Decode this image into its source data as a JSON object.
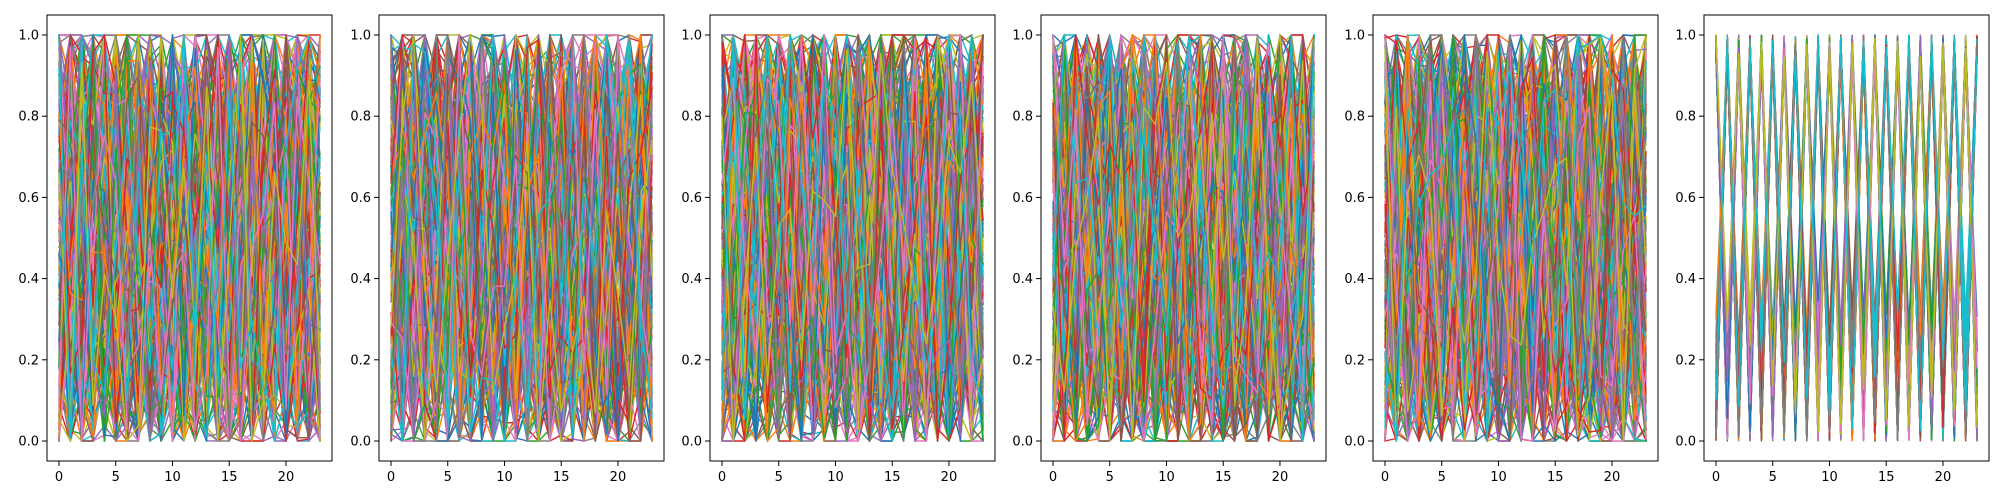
{
  "figure": {
    "panel_count": 6
  },
  "chart_data": [
    {
      "type": "line",
      "title": "",
      "xlabel": "",
      "ylabel": "",
      "xlim": [
        0,
        23
      ],
      "ylim": [
        0,
        1
      ],
      "xticks": [
        "0",
        "5",
        "10",
        "15",
        "20"
      ],
      "xtick_values": [
        0,
        5,
        10,
        15,
        20
      ],
      "yticks": [
        "0.0",
        "0.2",
        "0.4",
        "0.6",
        "0.8",
        "1.0"
      ],
      "ytick_values": [
        0.0,
        0.2,
        0.4,
        0.6,
        0.8,
        1.0
      ],
      "grid": false,
      "legend": "none",
      "n_points_per_series": 24,
      "series_count": 200,
      "color_cycle": [
        "#1f77b4",
        "#ff7f0e",
        "#2ca02c",
        "#d62728",
        "#9467bd",
        "#8c564b",
        "#e377c2",
        "#7f7f7f",
        "#bcbd22",
        "#17becf"
      ],
      "distribution": "uniform random values in [0, 1], dense overlapping lines"
    },
    {
      "type": "line",
      "title": "",
      "xlabel": "",
      "ylabel": "",
      "xlim": [
        0,
        23
      ],
      "ylim": [
        0,
        1
      ],
      "xticks": [
        "0",
        "5",
        "10",
        "15",
        "20"
      ],
      "xtick_values": [
        0,
        5,
        10,
        15,
        20
      ],
      "yticks": [
        "0.0",
        "0.2",
        "0.4",
        "0.6",
        "0.8",
        "1.0"
      ],
      "ytick_values": [
        0.0,
        0.2,
        0.4,
        0.6,
        0.8,
        1.0
      ],
      "grid": false,
      "legend": "none",
      "n_points_per_series": 24,
      "series_count": 200,
      "color_cycle": [
        "#1f77b4",
        "#ff7f0e",
        "#2ca02c",
        "#d62728",
        "#9467bd",
        "#8c564b",
        "#e377c2",
        "#7f7f7f",
        "#bcbd22",
        "#17becf"
      ],
      "distribution": "uniform random values in [0, 1], dense overlapping lines"
    },
    {
      "type": "line",
      "title": "",
      "xlabel": "",
      "ylabel": "",
      "xlim": [
        0,
        23
      ],
      "ylim": [
        0,
        1
      ],
      "xticks": [
        "0",
        "5",
        "10",
        "15",
        "20"
      ],
      "xtick_values": [
        0,
        5,
        10,
        15,
        20
      ],
      "yticks": [
        "0.0",
        "0.2",
        "0.4",
        "0.6",
        "0.8",
        "1.0"
      ],
      "ytick_values": [
        0.0,
        0.2,
        0.4,
        0.6,
        0.8,
        1.0
      ],
      "grid": false,
      "legend": "none",
      "n_points_per_series": 24,
      "series_count": 200,
      "color_cycle": [
        "#1f77b4",
        "#ff7f0e",
        "#2ca02c",
        "#d62728",
        "#9467bd",
        "#8c564b",
        "#e377c2",
        "#7f7f7f",
        "#bcbd22",
        "#17becf"
      ],
      "distribution": "uniform random values in [0, 1], dense overlapping lines"
    },
    {
      "type": "line",
      "title": "",
      "xlabel": "",
      "ylabel": "",
      "xlim": [
        0,
        23
      ],
      "ylim": [
        0,
        1
      ],
      "xticks": [
        "0",
        "5",
        "10",
        "15",
        "20"
      ],
      "xtick_values": [
        0,
        5,
        10,
        15,
        20
      ],
      "yticks": [
        "0.0",
        "0.2",
        "0.4",
        "0.6",
        "0.8",
        "1.0"
      ],
      "ytick_values": [
        0.0,
        0.2,
        0.4,
        0.6,
        0.8,
        1.0
      ],
      "grid": false,
      "legend": "none",
      "n_points_per_series": 24,
      "series_count": 200,
      "color_cycle": [
        "#1f77b4",
        "#ff7f0e",
        "#2ca02c",
        "#d62728",
        "#9467bd",
        "#8c564b",
        "#e377c2",
        "#7f7f7f",
        "#bcbd22",
        "#17becf"
      ],
      "distribution": "uniform random values in [0, 1], dense overlapping lines"
    },
    {
      "type": "line",
      "title": "",
      "xlabel": "",
      "ylabel": "",
      "xlim": [
        0,
        23
      ],
      "ylim": [
        0,
        1
      ],
      "xticks": [
        "0",
        "5",
        "10",
        "15",
        "20"
      ],
      "xtick_values": [
        0,
        5,
        10,
        15,
        20
      ],
      "yticks": [
        "0.0",
        "0.2",
        "0.4",
        "0.6",
        "0.8",
        "1.0"
      ],
      "ytick_values": [
        0.0,
        0.2,
        0.4,
        0.6,
        0.8,
        1.0
      ],
      "grid": false,
      "legend": "none",
      "n_points_per_series": 24,
      "series_count": 200,
      "color_cycle": [
        "#1f77b4",
        "#ff7f0e",
        "#2ca02c",
        "#d62728",
        "#9467bd",
        "#8c564b",
        "#e377c2",
        "#7f7f7f",
        "#bcbd22",
        "#17becf"
      ],
      "distribution": "uniform random values in [0, 1], dense overlapping lines"
    },
    {
      "type": "line",
      "title": "",
      "xlabel": "",
      "ylabel": "",
      "xlim": [
        0,
        23
      ],
      "ylim": [
        0,
        1
      ],
      "xticks": [
        "0",
        "5",
        "10",
        "15",
        "20"
      ],
      "xtick_values": [
        0,
        5,
        10,
        15,
        20
      ],
      "yticks": [
        "0.0",
        "0.2",
        "0.4",
        "0.6",
        "0.8",
        "1.0"
      ],
      "ytick_values": [
        0.0,
        0.2,
        0.4,
        0.6,
        0.8,
        1.0
      ],
      "grid": false,
      "legend": "none",
      "n_points_per_series": 24,
      "series_count": 200,
      "color_cycle": [
        "#1f77b4",
        "#ff7f0e",
        "#2ca02c",
        "#d62728",
        "#9467bd",
        "#8c564b",
        "#e377c2",
        "#7f7f7f",
        "#bcbd22",
        "#17becf"
      ],
      "distribution": "alternating zig-zag between 0 and 1 at every x step, dense overlapping lines"
    }
  ]
}
